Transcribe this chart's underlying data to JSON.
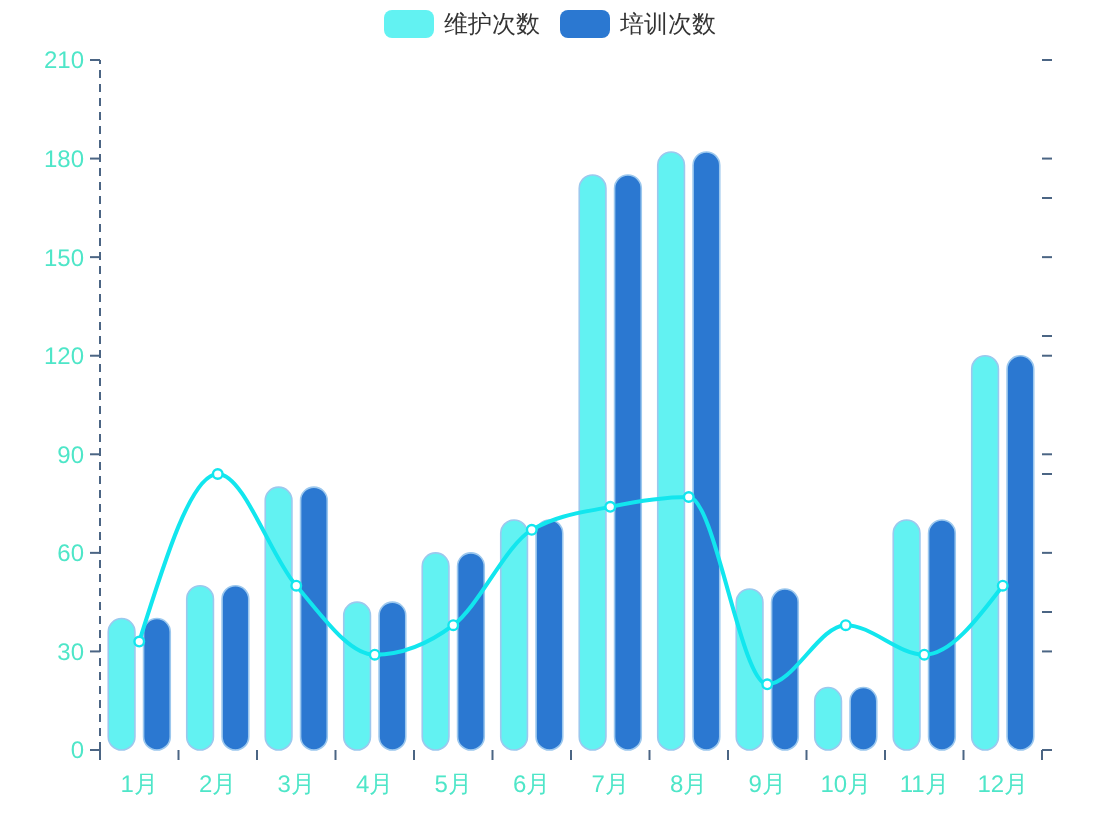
{
  "chart_data": {
    "type": "bar",
    "categories": [
      "1月",
      "2月",
      "3月",
      "4月",
      "5月",
      "6月",
      "7月",
      "8月",
      "9月",
      "10月",
      "11月",
      "12月"
    ],
    "series": [
      {
        "name": "维护次数",
        "color": "#62f2f2",
        "values": [
          40,
          50,
          80,
          45,
          60,
          70,
          175,
          182,
          49,
          19,
          70,
          120
        ]
      },
      {
        "name": "培训次数",
        "color": "#2b78d1",
        "values": [
          40,
          50,
          80,
          45,
          60,
          70,
          175,
          182,
          49,
          19,
          70,
          120
        ]
      },
      {
        "type": "line",
        "color": "#12e6ee",
        "values": [
          33,
          84,
          50,
          29,
          38,
          67,
          74,
          77,
          20,
          38,
          29,
          50
        ]
      }
    ],
    "ylim": [
      0,
      210
    ],
    "yticks": [
      0,
      30,
      60,
      90,
      120,
      150,
      180,
      210
    ],
    "legend": "top",
    "marker": "circle",
    "line_style": "solid"
  }
}
